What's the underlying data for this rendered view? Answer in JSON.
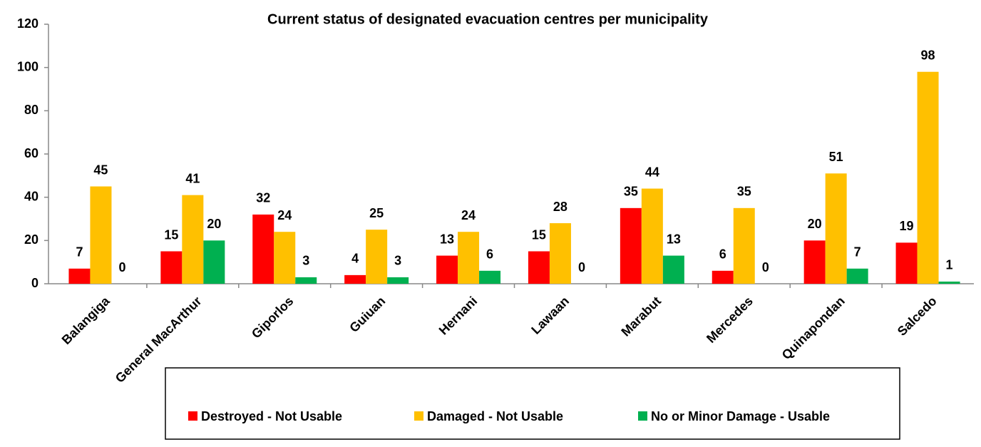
{
  "chart_data": {
    "type": "bar",
    "title": "Current status of designated evacuation centres per municipality",
    "categories": [
      "Balangiga",
      "General MacArthur",
      "Giporlos",
      "Guiuan",
      "Hernani",
      "Lawaan",
      "Marabut",
      "Mercedes",
      "Quinapondan",
      "Salcedo"
    ],
    "series": [
      {
        "name": "Destroyed - Not Usable",
        "color": "#ff0000",
        "values": [
          7,
          15,
          32,
          4,
          13,
          15,
          35,
          6,
          20,
          19
        ]
      },
      {
        "name": "Damaged  - Not Usable",
        "color": "#ffc000",
        "values": [
          45,
          41,
          24,
          25,
          24,
          28,
          44,
          35,
          51,
          98
        ]
      },
      {
        "name": "No or Minor Damage - Usable",
        "color": "#00b050",
        "values": [
          0,
          20,
          3,
          3,
          6,
          0,
          13,
          0,
          7,
          1
        ]
      }
    ],
    "ylim": [
      0,
      120
    ],
    "yticks": [
      0,
      20,
      40,
      60,
      80,
      100,
      120
    ],
    "grid": false,
    "legend": "bottom"
  }
}
